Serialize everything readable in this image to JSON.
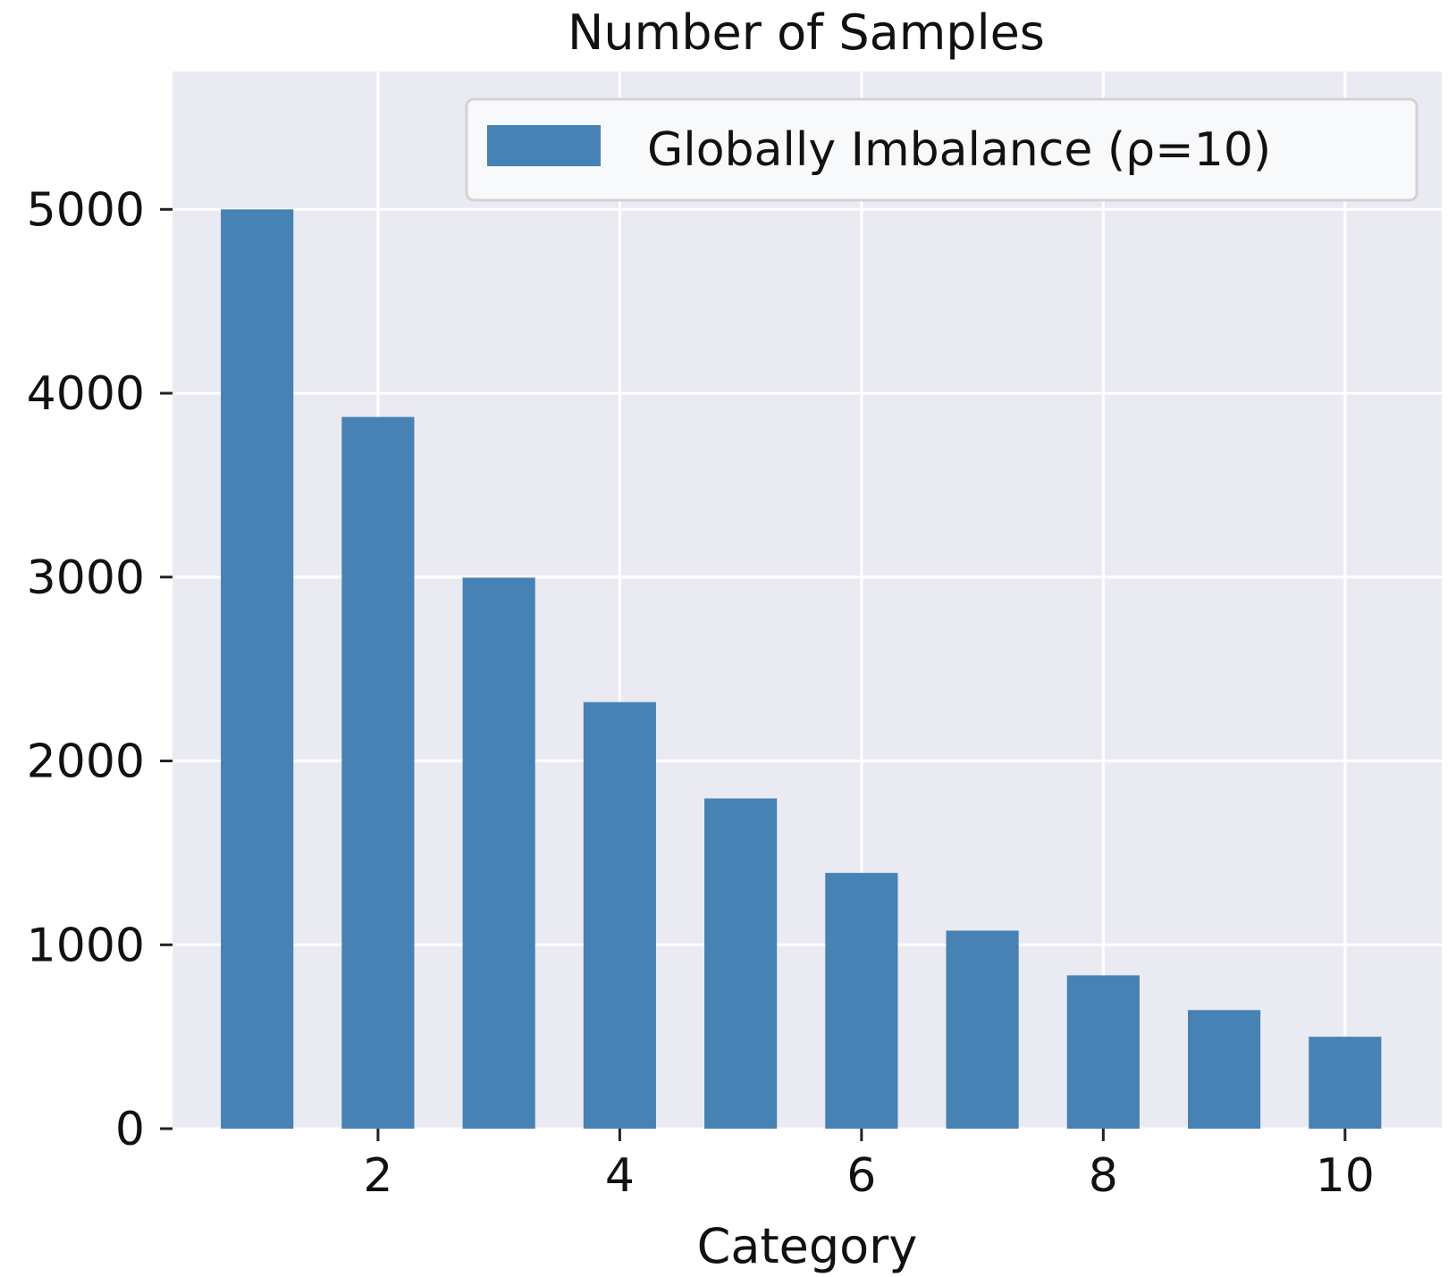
{
  "chart_data": {
    "type": "bar",
    "title": "Number of Samples",
    "xlabel": "Category",
    "ylabel": "",
    "categories": [
      1,
      2,
      3,
      4,
      5,
      6,
      7,
      8,
      9,
      10
    ],
    "series": [
      {
        "name": "Globally Imbalance (ρ=10)",
        "values": [
          5000,
          3871,
          2997,
          2320,
          1796,
          1391,
          1077,
          834,
          645,
          500
        ],
        "color": "#4682b4"
      }
    ],
    "xticks": [
      2,
      4,
      6,
      8,
      10
    ],
    "yticks": [
      0,
      1000,
      2000,
      3000,
      4000,
      5000
    ],
    "xlim": [
      0.3,
      10.8
    ],
    "ylim": [
      0,
      5750
    ],
    "grid": true,
    "legend_position": "top-right",
    "plot_background": "#eaeaf2",
    "legend_background": "#f8f9fb"
  }
}
